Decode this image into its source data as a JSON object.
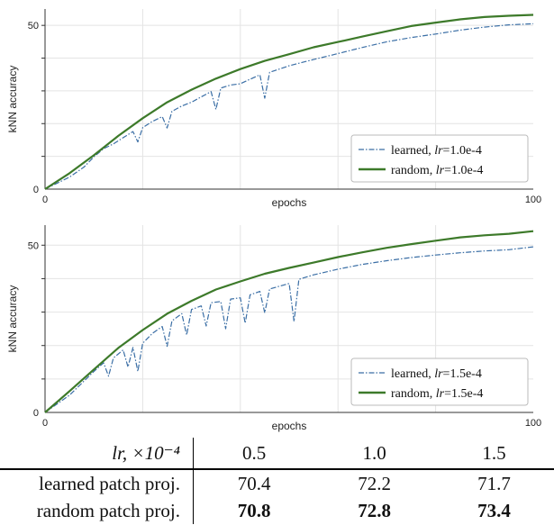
{
  "chart_data": [
    {
      "type": "line",
      "xlabel": "epochs",
      "ylabel": "kNN accuracy",
      "xlim": [
        0,
        100
      ],
      "ylim": [
        0,
        55
      ],
      "xticks": [
        "0",
        "100"
      ],
      "yticks": [
        "0",
        "50"
      ],
      "grid": true,
      "legend_position": "lower-right",
      "series": [
        {
          "name": "learned, lr=1.0e-4",
          "style": "dash-dot",
          "color": "#3a6ea5",
          "x": [
            0,
            5,
            8,
            10,
            12,
            14,
            16,
            18,
            19,
            20,
            22,
            24,
            25,
            26,
            28,
            30,
            32,
            34,
            35,
            36,
            38,
            40,
            42,
            44,
            45,
            46,
            48,
            50,
            55,
            60,
            65,
            70,
            75,
            80,
            85,
            90,
            95,
            100
          ],
          "y": [
            0,
            3.5,
            6.5,
            9.5,
            12,
            13.5,
            15.5,
            17.5,
            14.5,
            19,
            21,
            22.5,
            19,
            24,
            25.5,
            26.5,
            28,
            29.5,
            24,
            30.5,
            31.5,
            32,
            33.5,
            35,
            28,
            36,
            37,
            38,
            39.8,
            41.5,
            43.2,
            44.8,
            46,
            47,
            48.2,
            49.2,
            50,
            50.5
          ]
        },
        {
          "name": "random, lr=1.0e-4",
          "style": "solid",
          "color": "#3d7a2a",
          "x": [
            0,
            5,
            10,
            15,
            20,
            25,
            30,
            35,
            40,
            45,
            50,
            55,
            60,
            65,
            70,
            75,
            80,
            85,
            90,
            95,
            100
          ],
          "y": [
            0,
            4.5,
            10,
            16,
            21.5,
            26.5,
            30.5,
            34,
            37,
            39.5,
            41.5,
            43.5,
            45,
            46.5,
            48,
            49.5,
            50.5,
            51.5,
            52.3,
            52.8,
            53.2
          ]
        }
      ]
    },
    {
      "type": "line",
      "xlabel": "epochs",
      "ylabel": "kNN accuracy",
      "xlim": [
        0,
        100
      ],
      "ylim": [
        0,
        56
      ],
      "xticks": [
        "0",
        "100"
      ],
      "yticks": [
        "0",
        "50"
      ],
      "grid": true,
      "legend_position": "lower-right",
      "series": [
        {
          "name": "learned, lr=1.5e-4",
          "style": "dash-dot",
          "color": "#3a6ea5",
          "x": [
            0,
            5,
            10,
            12,
            13,
            14,
            16,
            17,
            18,
            19,
            20,
            22,
            24,
            25,
            26,
            28,
            29,
            30,
            32,
            33,
            34,
            36,
            37,
            38,
            40,
            41,
            42,
            44,
            45,
            46,
            50,
            51,
            52,
            55,
            60,
            65,
            70,
            75,
            80,
            85,
            90,
            95,
            100
          ],
          "y": [
            0,
            5,
            12,
            14.5,
            10.5,
            16,
            18.5,
            13.5,
            19.5,
            12.5,
            21,
            24,
            26,
            20,
            27.5,
            29.5,
            23,
            30.5,
            31.5,
            25.5,
            32.5,
            33,
            25,
            34,
            34.5,
            27,
            35.5,
            36.5,
            30,
            37,
            38.5,
            27,
            39.5,
            40.8,
            42.5,
            44,
            45.2,
            46.3,
            47.2,
            48,
            48.6,
            49,
            49.5
          ]
        },
        {
          "name": "random, lr=1.5e-4",
          "style": "solid",
          "color": "#3d7a2a",
          "x": [
            0,
            5,
            10,
            15,
            20,
            25,
            30,
            35,
            40,
            45,
            50,
            55,
            60,
            65,
            70,
            75,
            80,
            85,
            90,
            95,
            100
          ],
          "y": [
            0,
            6,
            12.5,
            19,
            24.5,
            29.5,
            33.5,
            37,
            39.5,
            41.8,
            43.5,
            45,
            46.5,
            47.8,
            49,
            50,
            51,
            52,
            52.7,
            53.3,
            54.2
          ]
        }
      ]
    }
  ],
  "legends": [
    [
      {
        "prefix": "learned, ",
        "var": "lr",
        "value": "=1.0e-4"
      },
      {
        "prefix": "random, ",
        "var": "lr",
        "value": "=1.0e-4"
      }
    ],
    [
      {
        "prefix": "learned, ",
        "var": "lr",
        "value": "=1.5e-4"
      },
      {
        "prefix": "random, ",
        "var": "lr",
        "value": "=1.5e-4"
      }
    ]
  ],
  "table": {
    "header_label": "lr, ×10⁻⁴",
    "columns": [
      "0.5",
      "1.0",
      "1.5"
    ],
    "rows": [
      {
        "label": "learned patch proj.",
        "values": [
          "70.4",
          "72.2",
          "71.7"
        ],
        "bold": [
          false,
          false,
          false
        ]
      },
      {
        "label": "random patch proj.",
        "values": [
          "70.8",
          "72.8",
          "73.4"
        ],
        "bold": [
          true,
          true,
          true
        ]
      }
    ]
  }
}
